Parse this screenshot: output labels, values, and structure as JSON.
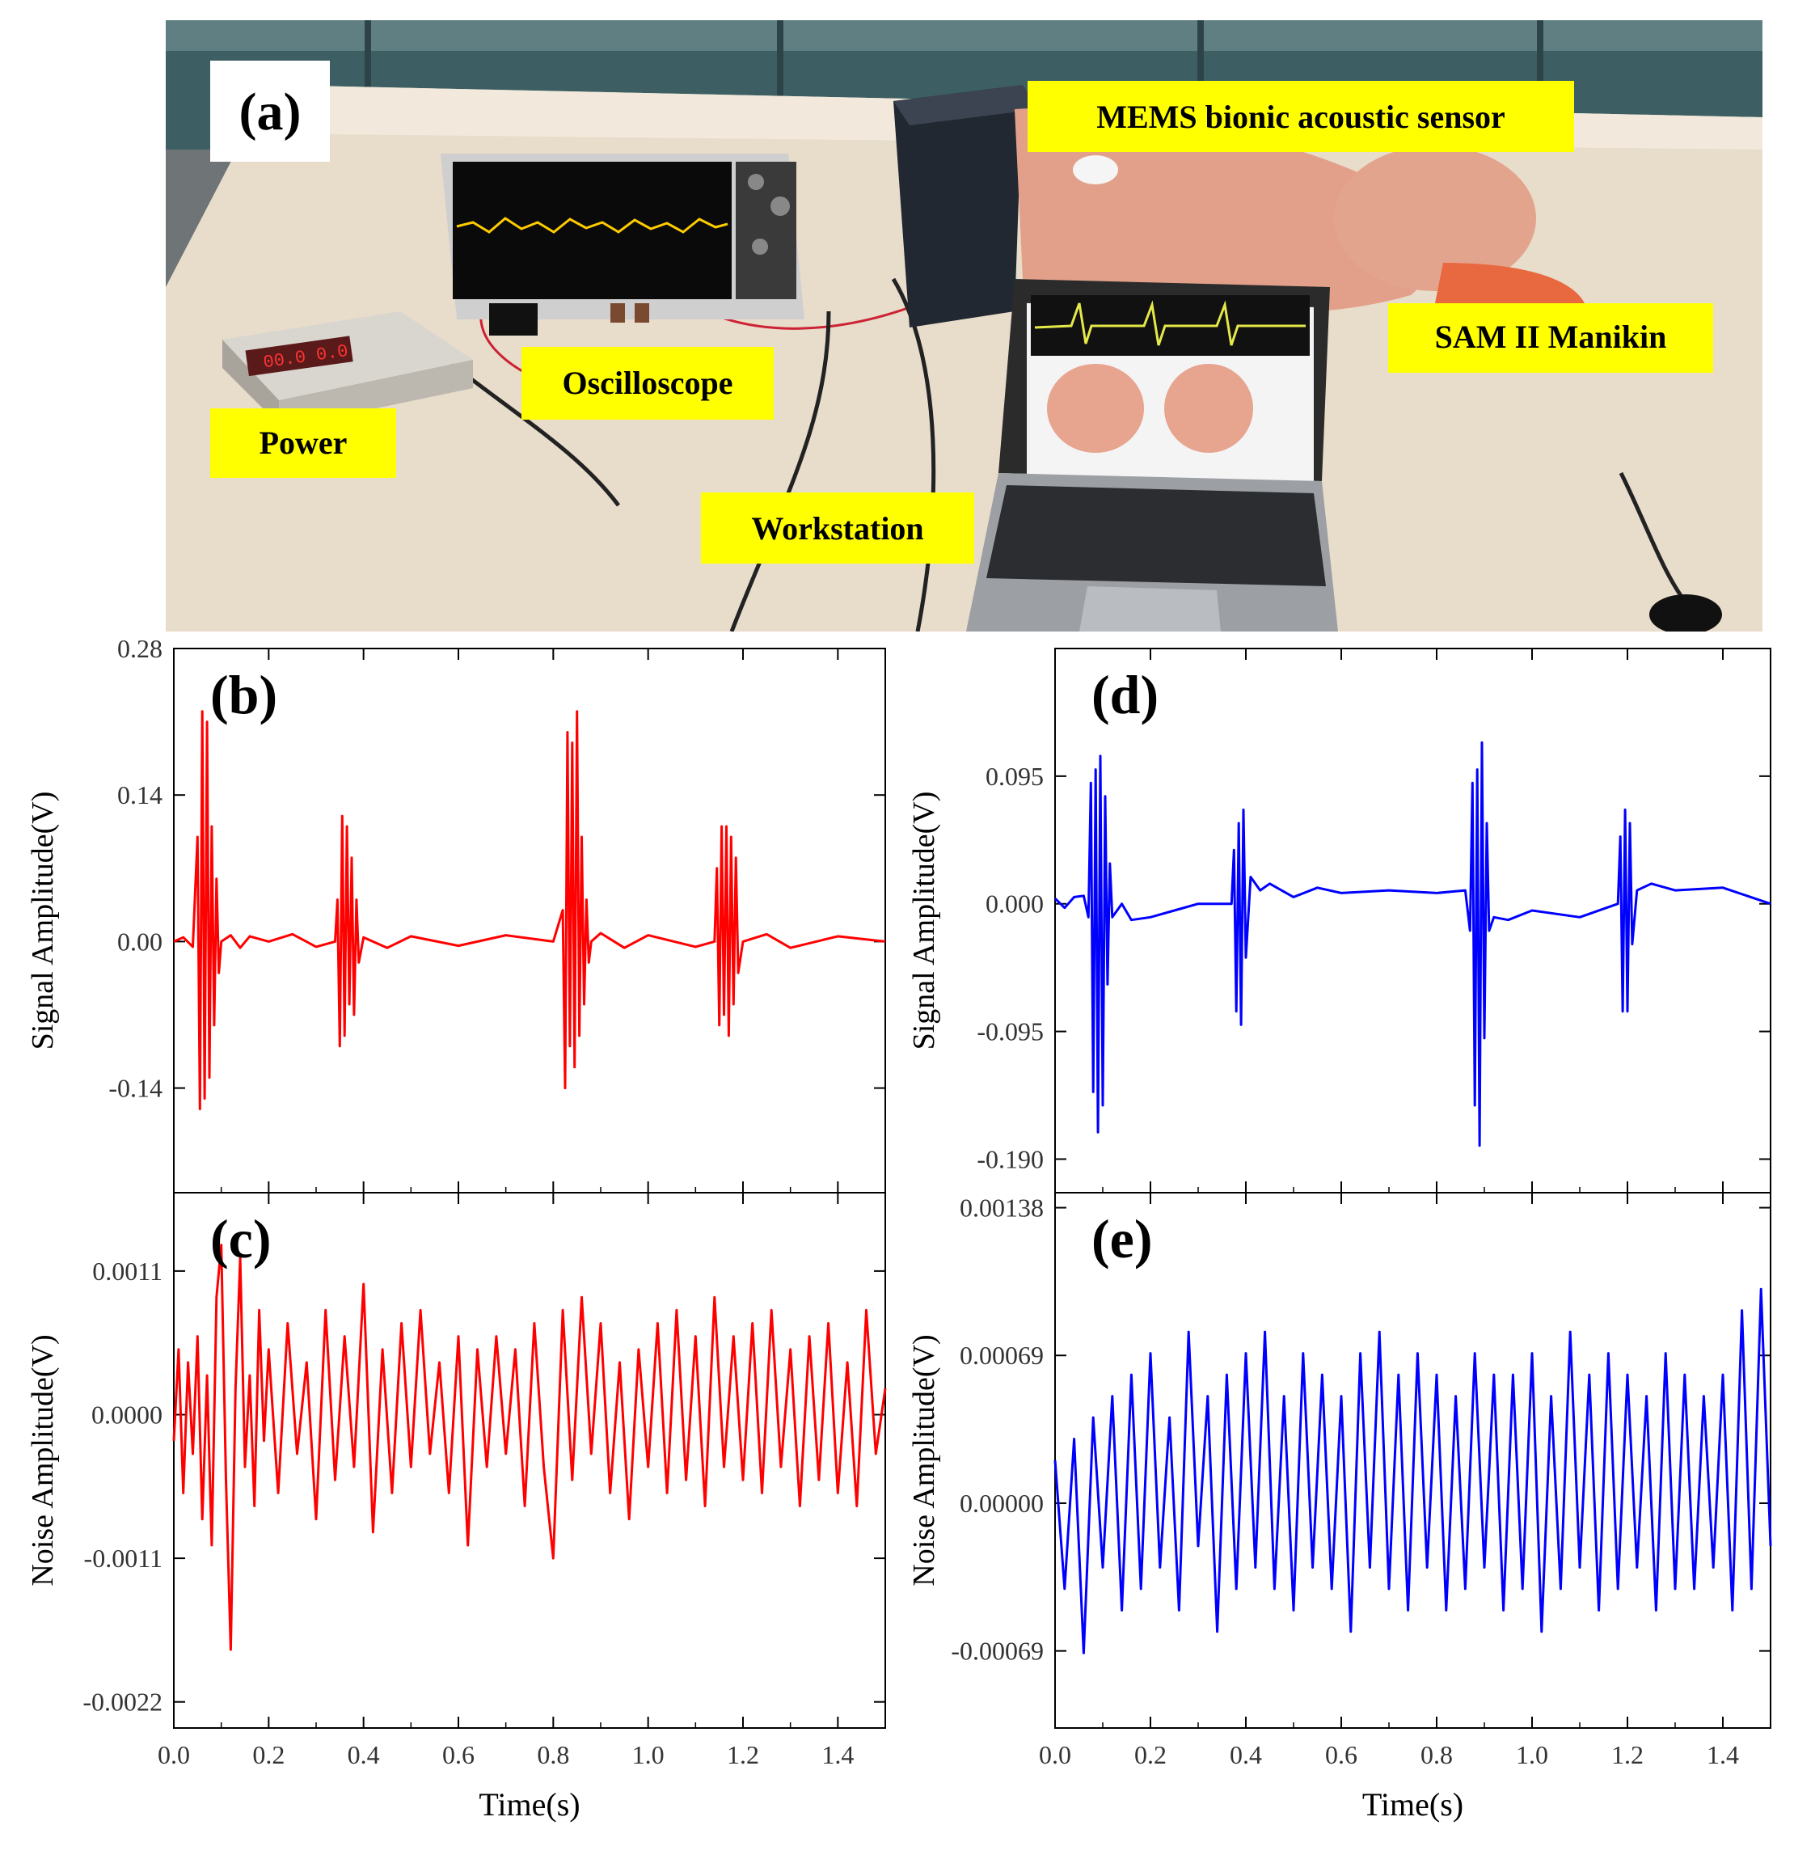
{
  "photo": {
    "panel_label": "(a)",
    "labels": {
      "sensor": "MEMS bionic acoustic sensor",
      "manikin": "SAM II Manikin",
      "oscilloscope": "Oscilloscope",
      "power": "Power",
      "workstation": "Workstation"
    },
    "colors": {
      "label_bg": "#ffff00",
      "label_text": "#000000"
    }
  },
  "chart_data": [
    {
      "id": "b",
      "panel_label": "(b)",
      "type": "line",
      "xlabel": "",
      "ylabel": "Signal Amplitude(V)",
      "xlim": [
        0.0,
        1.5
      ],
      "ylim": [
        -0.24,
        0.28
      ],
      "yticks": [
        "0.28",
        "0.14",
        "0.00",
        "-0.14"
      ],
      "ytick_values": [
        0.28,
        0.14,
        0.0,
        -0.14
      ],
      "xtick_values": [
        0.0,
        0.2,
        0.4,
        0.6,
        0.8,
        1.0,
        1.2,
        1.4
      ],
      "color": "#ff0000",
      "series": [
        {
          "x": [
            0.0,
            0.02,
            0.04,
            0.05,
            0.055,
            0.06,
            0.065,
            0.07,
            0.075,
            0.08,
            0.085,
            0.09,
            0.095,
            0.1,
            0.12,
            0.14,
            0.16,
            0.2,
            0.25,
            0.3,
            0.34,
            0.345,
            0.35,
            0.355,
            0.36,
            0.365,
            0.37,
            0.375,
            0.38,
            0.385,
            0.39,
            0.4,
            0.45,
            0.5,
            0.6,
            0.7,
            0.8,
            0.82,
            0.825,
            0.83,
            0.835,
            0.84,
            0.845,
            0.85,
            0.855,
            0.86,
            0.865,
            0.87,
            0.875,
            0.88,
            0.9,
            0.95,
            1.0,
            1.1,
            1.14,
            1.145,
            1.15,
            1.155,
            1.16,
            1.165,
            1.17,
            1.175,
            1.18,
            1.185,
            1.19,
            1.2,
            1.25,
            1.3,
            1.4,
            1.5
          ],
          "y": [
            0.0,
            0.004,
            -0.005,
            0.1,
            -0.16,
            0.22,
            -0.15,
            0.21,
            -0.13,
            0.11,
            -0.08,
            0.06,
            -0.03,
            0.0,
            0.006,
            -0.006,
            0.005,
            0.0,
            0.007,
            -0.005,
            0.0,
            0.04,
            -0.1,
            0.12,
            -0.09,
            0.11,
            -0.06,
            0.08,
            -0.07,
            0.04,
            -0.02,
            0.004,
            -0.006,
            0.005,
            -0.004,
            0.006,
            0.0,
            0.03,
            -0.14,
            0.2,
            -0.1,
            0.19,
            -0.12,
            0.22,
            -0.09,
            0.1,
            -0.06,
            0.04,
            -0.02,
            0.0,
            0.008,
            -0.006,
            0.006,
            -0.005,
            0.0,
            0.07,
            -0.08,
            0.11,
            -0.07,
            0.11,
            -0.09,
            0.1,
            -0.06,
            0.08,
            -0.03,
            0.0,
            0.007,
            -0.006,
            0.005,
            0.0
          ]
        }
      ]
    },
    {
      "id": "c",
      "panel_label": "(c)",
      "type": "line",
      "xlabel": "Time(s)",
      "ylabel": "Noise Amplitude(V)",
      "xlim": [
        0.0,
        1.5
      ],
      "ylim": [
        -0.0024,
        0.0017
      ],
      "yticks": [
        "0.0011",
        "0.0000",
        "-0.0011",
        "-0.0022"
      ],
      "ytick_values": [
        0.0011,
        0.0,
        -0.0011,
        -0.0022
      ],
      "xticks": [
        "0.0",
        "0.2",
        "0.4",
        "0.6",
        "0.8",
        "1.0",
        "1.2",
        "1.4"
      ],
      "xtick_values": [
        0.0,
        0.2,
        0.4,
        0.6,
        0.8,
        1.0,
        1.2,
        1.4
      ],
      "color": "#ff0000",
      "series": [
        {
          "x": [
            0.0,
            0.01,
            0.02,
            0.03,
            0.04,
            0.05,
            0.06,
            0.07,
            0.08,
            0.09,
            0.1,
            0.11,
            0.12,
            0.13,
            0.14,
            0.15,
            0.16,
            0.17,
            0.18,
            0.19,
            0.2,
            0.22,
            0.24,
            0.26,
            0.28,
            0.3,
            0.32,
            0.34,
            0.36,
            0.38,
            0.4,
            0.42,
            0.44,
            0.46,
            0.48,
            0.5,
            0.52,
            0.54,
            0.56,
            0.58,
            0.6,
            0.62,
            0.64,
            0.66,
            0.68,
            0.7,
            0.72,
            0.74,
            0.76,
            0.78,
            0.8,
            0.82,
            0.84,
            0.86,
            0.88,
            0.9,
            0.92,
            0.94,
            0.96,
            0.98,
            1.0,
            1.02,
            1.04,
            1.06,
            1.08,
            1.1,
            1.12,
            1.14,
            1.16,
            1.18,
            1.2,
            1.22,
            1.24,
            1.26,
            1.28,
            1.3,
            1.32,
            1.34,
            1.36,
            1.38,
            1.4,
            1.42,
            1.44,
            1.46,
            1.48,
            1.5
          ],
          "y": [
            -0.0002,
            0.0005,
            -0.0006,
            0.0004,
            -0.0003,
            0.0006,
            -0.0008,
            0.0003,
            -0.001,
            0.0009,
            0.0013,
            -0.0005,
            -0.0018,
            0.0002,
            0.0012,
            -0.0004,
            0.0003,
            -0.0007,
            0.0008,
            -0.0002,
            0.0005,
            -0.0006,
            0.0007,
            -0.0003,
            0.0004,
            -0.0008,
            0.0008,
            -0.0005,
            0.0006,
            -0.0004,
            0.001,
            -0.0009,
            0.0005,
            -0.0006,
            0.0007,
            -0.0004,
            0.0008,
            -0.0003,
            0.0004,
            -0.0006,
            0.0006,
            -0.001,
            0.0005,
            -0.0004,
            0.0006,
            -0.0003,
            0.0005,
            -0.0007,
            0.0007,
            -0.0004,
            -0.0011,
            0.0008,
            -0.0005,
            0.0009,
            -0.0003,
            0.0007,
            -0.0006,
            0.0004,
            -0.0008,
            0.0005,
            -0.0004,
            0.0007,
            -0.0006,
            0.0008,
            -0.0005,
            0.0006,
            -0.0007,
            0.0009,
            -0.0004,
            0.0006,
            -0.0005,
            0.0007,
            -0.0006,
            0.0008,
            -0.0004,
            0.0005,
            -0.0007,
            0.0006,
            -0.0005,
            0.0007,
            -0.0006,
            0.0004,
            -0.0007,
            0.0008,
            -0.0003,
            0.0002
          ]
        }
      ]
    },
    {
      "id": "d",
      "panel_label": "(d)",
      "type": "line",
      "xlabel": "",
      "ylabel": "Signal Amplitude(V)",
      "xlim": [
        0.0,
        1.5
      ],
      "ylim": [
        -0.215,
        0.19
      ],
      "yticks": [
        "0.095",
        "0.000",
        "-0.095",
        "-0.190"
      ],
      "ytick_values": [
        0.095,
        0.0,
        -0.095,
        -0.19
      ],
      "xtick_values": [
        0.0,
        0.2,
        0.4,
        0.6,
        0.8,
        1.0,
        1.2,
        1.4
      ],
      "color": "#0000ff",
      "series": [
        {
          "x": [
            0.0,
            0.02,
            0.04,
            0.06,
            0.07,
            0.075,
            0.08,
            0.085,
            0.09,
            0.095,
            0.1,
            0.105,
            0.11,
            0.115,
            0.12,
            0.14,
            0.16,
            0.2,
            0.25,
            0.3,
            0.37,
            0.375,
            0.38,
            0.385,
            0.39,
            0.395,
            0.4,
            0.41,
            0.43,
            0.45,
            0.5,
            0.55,
            0.6,
            0.7,
            0.8,
            0.86,
            0.87,
            0.875,
            0.88,
            0.885,
            0.89,
            0.895,
            0.9,
            0.905,
            0.91,
            0.92,
            0.95,
            1.0,
            1.1,
            1.18,
            1.185,
            1.19,
            1.195,
            1.2,
            1.205,
            1.21,
            1.22,
            1.25,
            1.3,
            1.4,
            1.5
          ],
          "y": [
            0.004,
            -0.003,
            0.005,
            0.006,
            -0.01,
            0.09,
            -0.14,
            0.1,
            -0.17,
            0.11,
            -0.15,
            0.08,
            -0.06,
            0.03,
            -0.01,
            0.0,
            -0.012,
            -0.01,
            -0.005,
            0.0,
            0.0,
            0.04,
            -0.08,
            0.06,
            -0.09,
            0.07,
            -0.04,
            0.02,
            0.01,
            0.015,
            0.005,
            0.012,
            0.008,
            0.01,
            0.008,
            0.01,
            -0.02,
            0.09,
            -0.15,
            0.1,
            -0.18,
            0.12,
            -0.1,
            0.06,
            -0.02,
            -0.01,
            -0.012,
            -0.005,
            -0.01,
            0.0,
            0.05,
            -0.08,
            0.07,
            -0.08,
            0.06,
            -0.03,
            0.01,
            0.015,
            0.01,
            0.012,
            0.0
          ]
        }
      ]
    },
    {
      "id": "e",
      "panel_label": "(e)",
      "type": "line",
      "xlabel": "Time(s)",
      "ylabel": "Noise Amplitude(V)",
      "xlim": [
        0.0,
        1.5
      ],
      "ylim": [
        -0.00105,
        0.00145
      ],
      "yticks": [
        "0.00138",
        "0.00069",
        "0.00000",
        "-0.00069"
      ],
      "ytick_values": [
        0.00138,
        0.00069,
        0.0,
        -0.00069
      ],
      "xticks": [
        "0.0",
        "0.2",
        "0.4",
        "0.6",
        "0.8",
        "1.0",
        "1.2",
        "1.4"
      ],
      "xtick_values": [
        0.0,
        0.2,
        0.4,
        0.6,
        0.8,
        1.0,
        1.2,
        1.4
      ],
      "color": "#0000ff",
      "series": [
        {
          "x": [
            0.0,
            0.02,
            0.04,
            0.06,
            0.08,
            0.1,
            0.12,
            0.14,
            0.16,
            0.18,
            0.2,
            0.22,
            0.24,
            0.26,
            0.28,
            0.3,
            0.32,
            0.34,
            0.36,
            0.38,
            0.4,
            0.42,
            0.44,
            0.46,
            0.48,
            0.5,
            0.52,
            0.54,
            0.56,
            0.58,
            0.6,
            0.62,
            0.64,
            0.66,
            0.68,
            0.7,
            0.72,
            0.74,
            0.76,
            0.78,
            0.8,
            0.82,
            0.84,
            0.86,
            0.88,
            0.9,
            0.92,
            0.94,
            0.96,
            0.98,
            1.0,
            1.02,
            1.04,
            1.06,
            1.08,
            1.1,
            1.12,
            1.14,
            1.16,
            1.18,
            1.2,
            1.22,
            1.24,
            1.26,
            1.28,
            1.3,
            1.32,
            1.34,
            1.36,
            1.38,
            1.4,
            1.42,
            1.44,
            1.46,
            1.48,
            1.5
          ],
          "y": [
            0.0002,
            -0.0004,
            0.0003,
            -0.0007,
            0.0004,
            -0.0003,
            0.0005,
            -0.0005,
            0.0006,
            -0.0004,
            0.0007,
            -0.0003,
            0.0004,
            -0.0005,
            0.0008,
            -0.0002,
            0.0005,
            -0.0006,
            0.0006,
            -0.0004,
            0.0007,
            -0.0003,
            0.0008,
            -0.0004,
            0.0005,
            -0.0005,
            0.0007,
            -0.0003,
            0.0006,
            -0.0004,
            0.0005,
            -0.0006,
            0.0007,
            -0.0003,
            0.0008,
            -0.0004,
            0.0006,
            -0.0005,
            0.0007,
            -0.0003,
            0.0006,
            -0.0005,
            0.0005,
            -0.0004,
            0.0007,
            -0.0003,
            0.0006,
            -0.0005,
            0.0006,
            -0.0004,
            0.0007,
            -0.0006,
            0.0005,
            -0.0004,
            0.0008,
            -0.0003,
            0.0006,
            -0.0005,
            0.0007,
            -0.0004,
            0.0006,
            -0.0003,
            0.0005,
            -0.0005,
            0.0007,
            -0.0004,
            0.0006,
            -0.0004,
            0.0005,
            -0.0003,
            0.0006,
            -0.0005,
            0.0009,
            -0.0004,
            0.001,
            -0.0002
          ]
        }
      ]
    }
  ]
}
